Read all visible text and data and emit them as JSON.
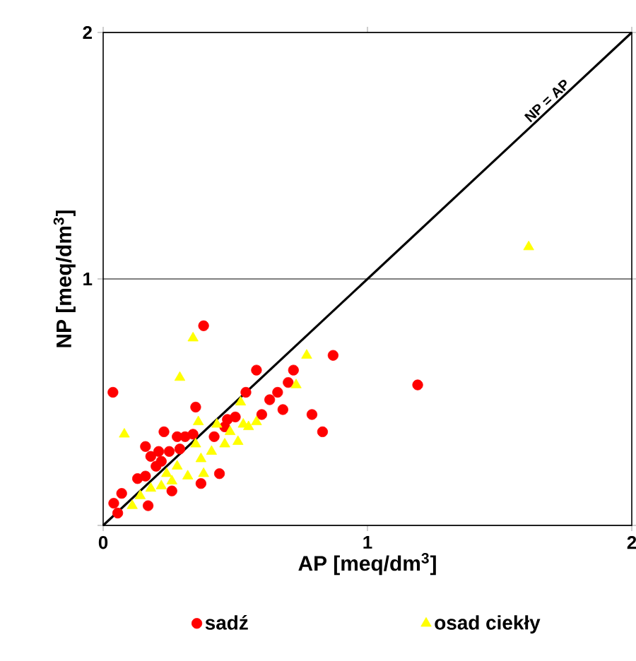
{
  "chart_data": {
    "type": "scatter",
    "xlabel": "AP [meq/dm$^{3}$]",
    "ylabel": "NP [meq/dm$^{3}$]",
    "xlim": [
      0,
      2
    ],
    "ylim": [
      0,
      2
    ],
    "xticks": [
      0,
      1,
      2
    ],
    "yticks": [
      {
        "value": 0,
        "label": null
      },
      1,
      2
    ],
    "grid": "y",
    "legend": "bottom",
    "annotations": [
      {
        "text": "NP = AP",
        "x": 1.7,
        "y": 1.7
      }
    ],
    "series": [
      {
        "name": "sadź",
        "color": "#ff0000",
        "marker": "circle",
        "x": [
          0.38,
          0.037,
          0.87,
          0.58,
          0.72,
          0.7,
          0.66,
          0.63,
          0.54,
          0.35,
          0.68,
          0.6,
          0.79,
          0.83,
          0.47,
          0.5,
          0.23,
          0.28,
          0.31,
          0.34,
          0.42,
          0.16,
          0.21,
          0.18,
          0.22,
          0.25,
          0.29,
          0.44,
          0.37,
          0.13,
          0.16,
          0.26,
          0.07,
          0.04,
          0.055,
          0.17,
          0.46,
          0.2,
          1.19
        ],
        "values": [
          0.81,
          0.54,
          0.69,
          0.63,
          0.63,
          0.58,
          0.54,
          0.51,
          0.54,
          0.48,
          0.47,
          0.45,
          0.45,
          0.38,
          0.43,
          0.44,
          0.38,
          0.36,
          0.36,
          0.37,
          0.36,
          0.32,
          0.3,
          0.28,
          0.26,
          0.3,
          0.31,
          0.21,
          0.17,
          0.19,
          0.2,
          0.14,
          0.13,
          0.09,
          0.05,
          0.08,
          0.4,
          0.24,
          0.57
        ]
      },
      {
        "name": "osad ciekły",
        "color": "#ffff00",
        "marker": "triangle",
        "x": [
          0.34,
          0.29,
          0.08,
          0.77,
          0.73,
          0.52,
          0.36,
          0.43,
          0.48,
          0.53,
          0.55,
          0.58,
          0.51,
          0.46,
          0.41,
          0.37,
          0.35,
          0.28,
          0.38,
          0.32,
          0.26,
          0.22,
          0.18,
          0.14,
          0.11,
          0.24,
          1.61
        ],
        "values": [
          0.76,
          0.6,
          0.37,
          0.69,
          0.57,
          0.5,
          0.42,
          0.41,
          0.38,
          0.41,
          0.4,
          0.42,
          0.34,
          0.33,
          0.3,
          0.27,
          0.33,
          0.24,
          0.21,
          0.2,
          0.18,
          0.16,
          0.15,
          0.12,
          0.08,
          0.21,
          1.13
        ]
      },
      {
        "type": "line",
        "color": "#000000",
        "marker": "none",
        "x": [
          0,
          2
        ],
        "values": [
          0,
          2
        ]
      }
    ]
  }
}
